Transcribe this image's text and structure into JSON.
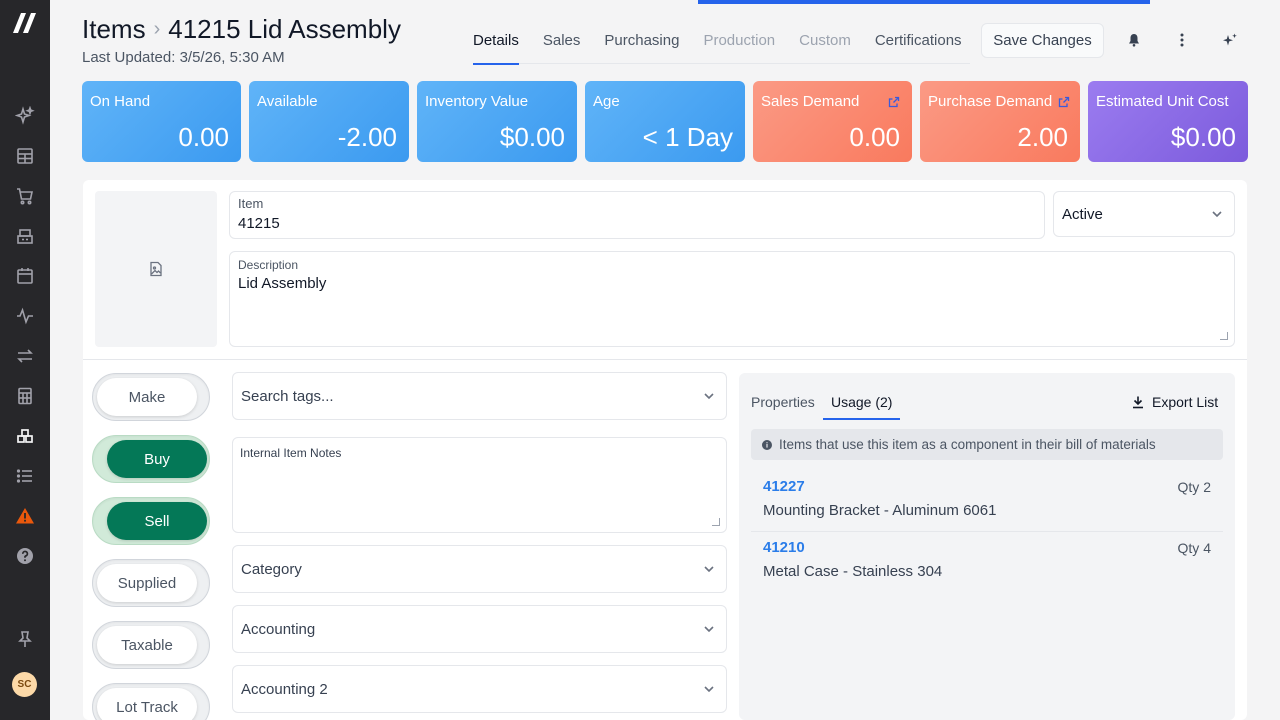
{
  "header": {
    "title_section": "Items",
    "title_item": "41215 Lid Assembly",
    "last_updated": "Last Updated: 3/5/26, 5:30 AM",
    "save_label": "Save Changes"
  },
  "tabs": [
    {
      "label": "Details",
      "state": "active"
    },
    {
      "label": "Sales",
      "state": "normal"
    },
    {
      "label": "Purchasing",
      "state": "normal"
    },
    {
      "label": "Production",
      "state": "disabled"
    },
    {
      "label": "Custom",
      "state": "disabled"
    },
    {
      "label": "Certifications",
      "state": "normal"
    }
  ],
  "stats": [
    {
      "label": "On Hand",
      "value": "0.00",
      "color": "#4fa8f5"
    },
    {
      "label": "Available",
      "value": "-2.00",
      "color": "#4fa8f5"
    },
    {
      "label": "Inventory Value",
      "value": "$0.00",
      "color": "#4fa8f5"
    },
    {
      "label": "Age",
      "value": "< 1 Day",
      "color": "#4fa8f5"
    },
    {
      "label": "Sales Demand",
      "value": "0.00",
      "color": "#f98a71",
      "icon": "external-link-icon"
    },
    {
      "label": "Purchase Demand",
      "value": "2.00",
      "color": "#f98a71",
      "icon": "external-link-icon"
    },
    {
      "label": "Estimated Unit Cost",
      "value": "$0.00",
      "color": "#8b6be6"
    }
  ],
  "form": {
    "item_label": "Item",
    "item_value": "41215",
    "status_value": "Active",
    "description_label": "Description",
    "description_value": "Lid Assembly",
    "tags_placeholder": "Search tags...",
    "notes_placeholder": "Internal Item Notes",
    "category_placeholder": "Category",
    "accounting_placeholder": "Accounting",
    "accounting2_placeholder": "Accounting 2"
  },
  "toggles": [
    {
      "label": "Make",
      "on": false
    },
    {
      "label": "Buy",
      "on": true
    },
    {
      "label": "Sell",
      "on": true
    },
    {
      "label": "Supplied",
      "on": false
    },
    {
      "label": "Taxable",
      "on": false
    },
    {
      "label": "Lot Track",
      "on": false
    }
  ],
  "usage": {
    "tab_properties": "Properties",
    "tab_usage": "Usage (2)",
    "export_label": "Export List",
    "info": "Items that use this item as a component in their bill of materials",
    "rows": [
      {
        "code": "41227",
        "qty": "Qty 2",
        "desc": "Mounting Bracket - Aluminum 6061"
      },
      {
        "code": "41210",
        "qty": "Qty 4",
        "desc": "Metal Case - Stainless 304"
      }
    ]
  },
  "user": {
    "initials": "SC"
  },
  "sidebar_icons": [
    "sparkles-icon",
    "dashboard-icon",
    "cart-icon",
    "factory-icon",
    "calendar-icon",
    "activity-icon",
    "transfer-icon",
    "calculator-icon",
    "inventory-icon",
    "list-icon",
    "alert-icon",
    "help-icon",
    "pin-icon"
  ],
  "colors": {
    "accent": "#2563eb",
    "sidebar": "#27272a",
    "toggle_on": "#047857",
    "link": "#2b7de9"
  }
}
